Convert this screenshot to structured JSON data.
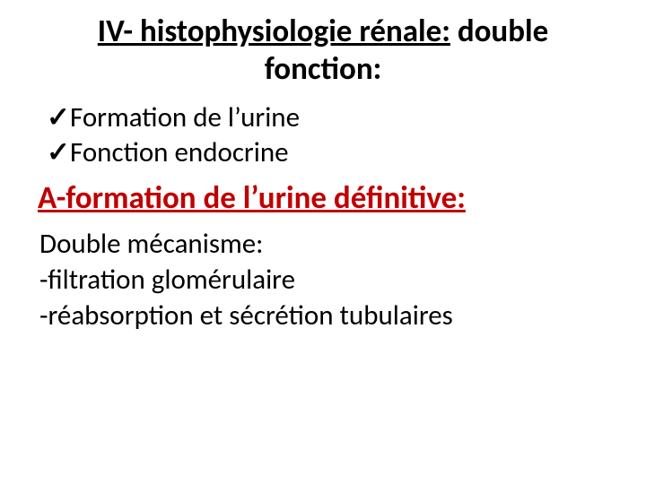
{
  "title": {
    "underlined": "IV- histophysiologie rénale:",
    "rest_line1": " double",
    "rest_line2": "fonction:"
  },
  "colors": {
    "heading_red": "#c00000",
    "text_black": "#000000",
    "background": "#ffffff"
  },
  "typography": {
    "title_fontsize": 35,
    "title_weight": 700,
    "list_fontsize": 31,
    "heading_fontsize": 35,
    "body_fontsize": 31,
    "font_family": "Calibri"
  },
  "checklist": {
    "mark": "✓",
    "items": [
      "Formation de l’urine",
      "Fonction endocrine"
    ]
  },
  "section_heading": "A-formation de l’urine définitive:",
  "body": {
    "lines": [
      "Double mécanisme:",
      "-filtration glomérulaire",
      "-réabsorption et sécrétion tubulaires"
    ]
  }
}
